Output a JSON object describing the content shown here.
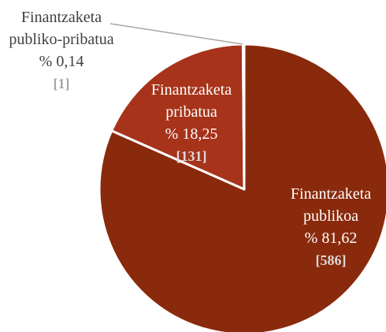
{
  "chart_data": {
    "type": "pie",
    "categories": [
      "Finantzaketa publikoa",
      "Finantzaketa pribatua",
      "Finantzaketa publiko-pribatua"
    ],
    "values": [
      81.62,
      18.25,
      0.14
    ],
    "value_labels": [
      "% 81,62",
      "% 18,25",
      "% 0,14"
    ],
    "count_labels": [
      "[586]",
      "[131]",
      "[1]"
    ],
    "colors": [
      "#8a2a0c",
      "#a7331a",
      "#c24a2c"
    ]
  }
}
